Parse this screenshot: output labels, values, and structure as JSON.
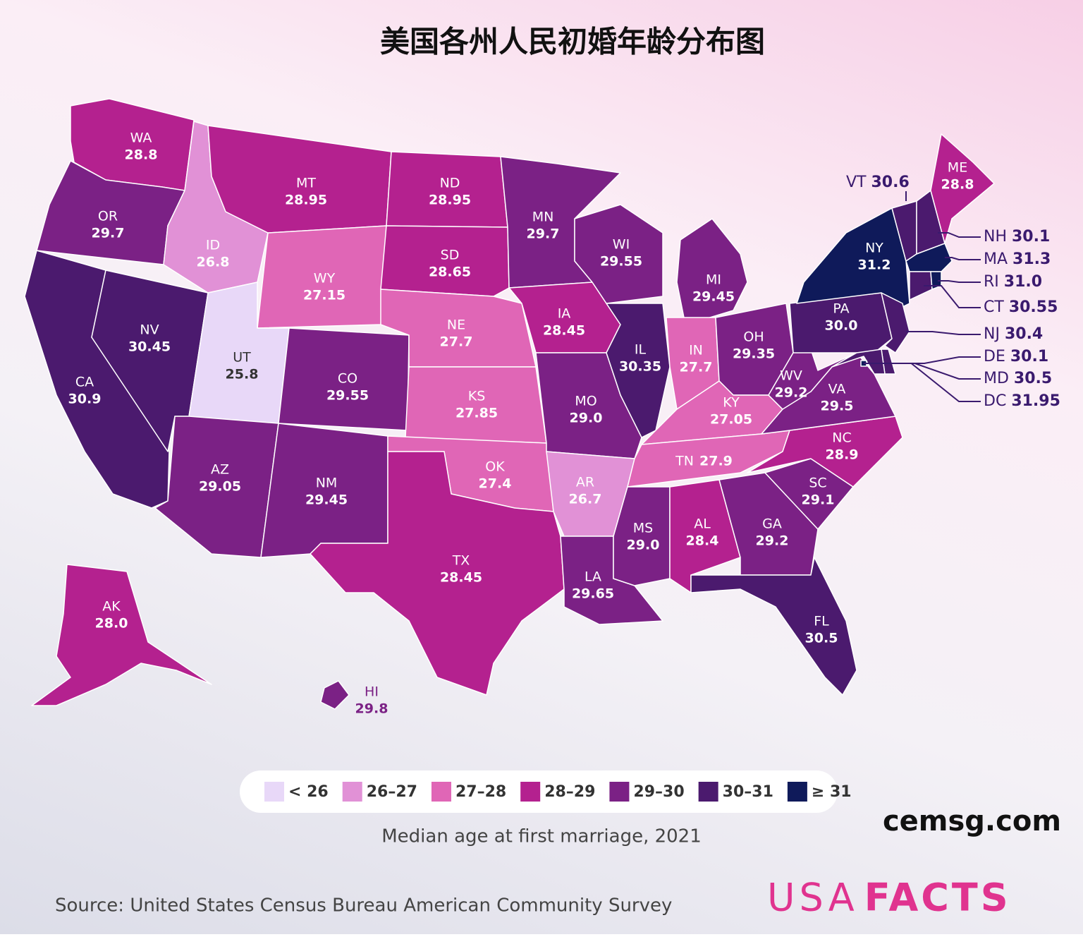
{
  "title": "美国各州人民初婚年龄分布图",
  "states": [
    {
      "abbr": "WA",
      "value": "28.8",
      "color": "#b4218f"
    },
    {
      "abbr": "OR",
      "value": "29.7",
      "color": "#7b2185"
    },
    {
      "abbr": "CA",
      "value": "30.9",
      "color": "#4b1a6e"
    },
    {
      "abbr": "NV",
      "value": "30.45",
      "color": "#4b1a6e"
    },
    {
      "abbr": "ID",
      "value": "26.8",
      "color": "#e191d6"
    },
    {
      "abbr": "MT",
      "value": "28.95",
      "color": "#b4218f"
    },
    {
      "abbr": "WY",
      "value": "27.15",
      "color": "#e066b6"
    },
    {
      "abbr": "UT",
      "value": "25.8",
      "color": "#e8d8f8"
    },
    {
      "abbr": "CO",
      "value": "29.55",
      "color": "#7b2185"
    },
    {
      "abbr": "AZ",
      "value": "29.05",
      "color": "#7b2185"
    },
    {
      "abbr": "NM",
      "value": "29.45",
      "color": "#7b2185"
    },
    {
      "abbr": "ND",
      "value": "28.95",
      "color": "#b4218f"
    },
    {
      "abbr": "SD",
      "value": "28.65",
      "color": "#b4218f"
    },
    {
      "abbr": "NE",
      "value": "27.7",
      "color": "#e066b6"
    },
    {
      "abbr": "KS",
      "value": "27.85",
      "color": "#e066b6"
    },
    {
      "abbr": "OK",
      "value": "27.4",
      "color": "#e066b6"
    },
    {
      "abbr": "TX",
      "value": "28.45",
      "color": "#b4218f"
    },
    {
      "abbr": "MN",
      "value": "29.7",
      "color": "#7b2185"
    },
    {
      "abbr": "IA",
      "value": "28.45",
      "color": "#b4218f"
    },
    {
      "abbr": "MO",
      "value": "29.0",
      "color": "#7b2185"
    },
    {
      "abbr": "AR",
      "value": "26.7",
      "color": "#e191d6"
    },
    {
      "abbr": "LA",
      "value": "29.65",
      "color": "#7b2185"
    },
    {
      "abbr": "WI",
      "value": "29.55",
      "color": "#7b2185"
    },
    {
      "abbr": "IL",
      "value": "30.35",
      "color": "#4b1a6e"
    },
    {
      "abbr": "MI",
      "value": "29.45",
      "color": "#7b2185"
    },
    {
      "abbr": "IN",
      "value": "27.7",
      "color": "#e066b6"
    },
    {
      "abbr": "OH",
      "value": "29.35",
      "color": "#7b2185"
    },
    {
      "abbr": "KY",
      "value": "27.05",
      "color": "#e066b6"
    },
    {
      "abbr": "TN",
      "value": "27.9",
      "color": "#e066b6"
    },
    {
      "abbr": "MS",
      "value": "29.0",
      "color": "#7b2185"
    },
    {
      "abbr": "AL",
      "value": "28.4",
      "color": "#b4218f"
    },
    {
      "abbr": "GA",
      "value": "29.2",
      "color": "#7b2185"
    },
    {
      "abbr": "FL",
      "value": "30.5",
      "color": "#4b1a6e"
    },
    {
      "abbr": "SC",
      "value": "29.1",
      "color": "#7b2185"
    },
    {
      "abbr": "NC",
      "value": "28.9",
      "color": "#b4218f"
    },
    {
      "abbr": "VA",
      "value": "29.5",
      "color": "#7b2185"
    },
    {
      "abbr": "WV",
      "value": "29.2",
      "color": "#7b2185"
    },
    {
      "abbr": "PA",
      "value": "30.0",
      "color": "#4b1a6e"
    },
    {
      "abbr": "NY",
      "value": "31.2",
      "color": "#0f1a5a"
    },
    {
      "abbr": "VT",
      "value": "30.6",
      "color": "#4b1a6e"
    },
    {
      "abbr": "NH",
      "value": "30.1",
      "color": "#4b1a6e"
    },
    {
      "abbr": "ME",
      "value": "28.8",
      "color": "#b4218f"
    },
    {
      "abbr": "MA",
      "value": "31.3",
      "color": "#0f1a5a"
    },
    {
      "abbr": "CT",
      "value": "30.55",
      "color": "#4b1a6e"
    },
    {
      "abbr": "RI",
      "value": "31.0",
      "color": "#0f1a5a"
    },
    {
      "abbr": "NJ",
      "value": "30.4",
      "color": "#4b1a6e"
    },
    {
      "abbr": "DE",
      "value": "30.1",
      "color": "#4b1a6e"
    },
    {
      "abbr": "MD",
      "value": "30.5",
      "color": "#4b1a6e"
    },
    {
      "abbr": "DC",
      "value": "31.95",
      "color": "#0f1a5a"
    },
    {
      "abbr": "AK",
      "value": "28.0",
      "color": "#b4218f"
    },
    {
      "abbr": "HI",
      "value": "29.8",
      "color": "#7b2185"
    }
  ],
  "legend": [
    {
      "label": "< 26",
      "color": "#e8d8f8"
    },
    {
      "label": "26–27",
      "color": "#e191d6"
    },
    {
      "label": "27–28",
      "color": "#e066b6"
    },
    {
      "label": "28–29",
      "color": "#b4218f"
    },
    {
      "label": "29–30",
      "color": "#7b2185"
    },
    {
      "label": "30–31",
      "color": "#4b1a6e"
    },
    {
      "label": "≥ 31",
      "color": "#0f1a5a"
    }
  ],
  "caption": "Median age at first marriage, 2021",
  "watermark": "cemsg.com",
  "source": "Source: United States Census Bureau American Community Survey",
  "logo": {
    "light": "USA",
    "bold": "FACTS"
  }
}
